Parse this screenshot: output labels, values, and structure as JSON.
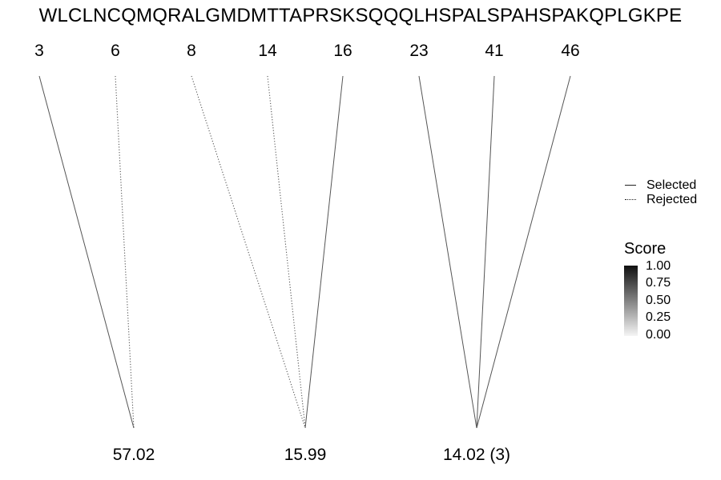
{
  "sequence": "WLCLNCQMQRALGMDMTTAPRSKSQQQLHSPALSPAHSPAKQPLGKPE",
  "positions": [
    "3",
    "6",
    "8",
    "14",
    "16",
    "23",
    "41",
    "46"
  ],
  "scores": [
    "57.02",
    "15.99",
    "14.02 (3)"
  ],
  "links": [
    {
      "position": "3",
      "score": "57.02",
      "status": "selected"
    },
    {
      "position": "6",
      "score": "57.02",
      "status": "rejected"
    },
    {
      "position": "8",
      "score": "15.99",
      "status": "rejected"
    },
    {
      "position": "14",
      "score": "15.99",
      "status": "rejected"
    },
    {
      "position": "16",
      "score": "15.99",
      "status": "selected"
    },
    {
      "position": "23",
      "score": "14.02 (3)",
      "status": "selected"
    },
    {
      "position": "41",
      "score": "14.02 (3)",
      "status": "selected"
    },
    {
      "position": "46",
      "score": "14.02 (3)",
      "status": "selected"
    }
  ],
  "legend": {
    "selected_label": "Selected",
    "rejected_label": "Rejected",
    "score_title": "Score",
    "score_ticks": [
      "1.00",
      "0.75",
      "0.50",
      "0.25",
      "0.00"
    ]
  },
  "colors": {
    "line": "#555555",
    "colorbar_high": "#101010",
    "colorbar_low": "#f5f5f5"
  }
}
